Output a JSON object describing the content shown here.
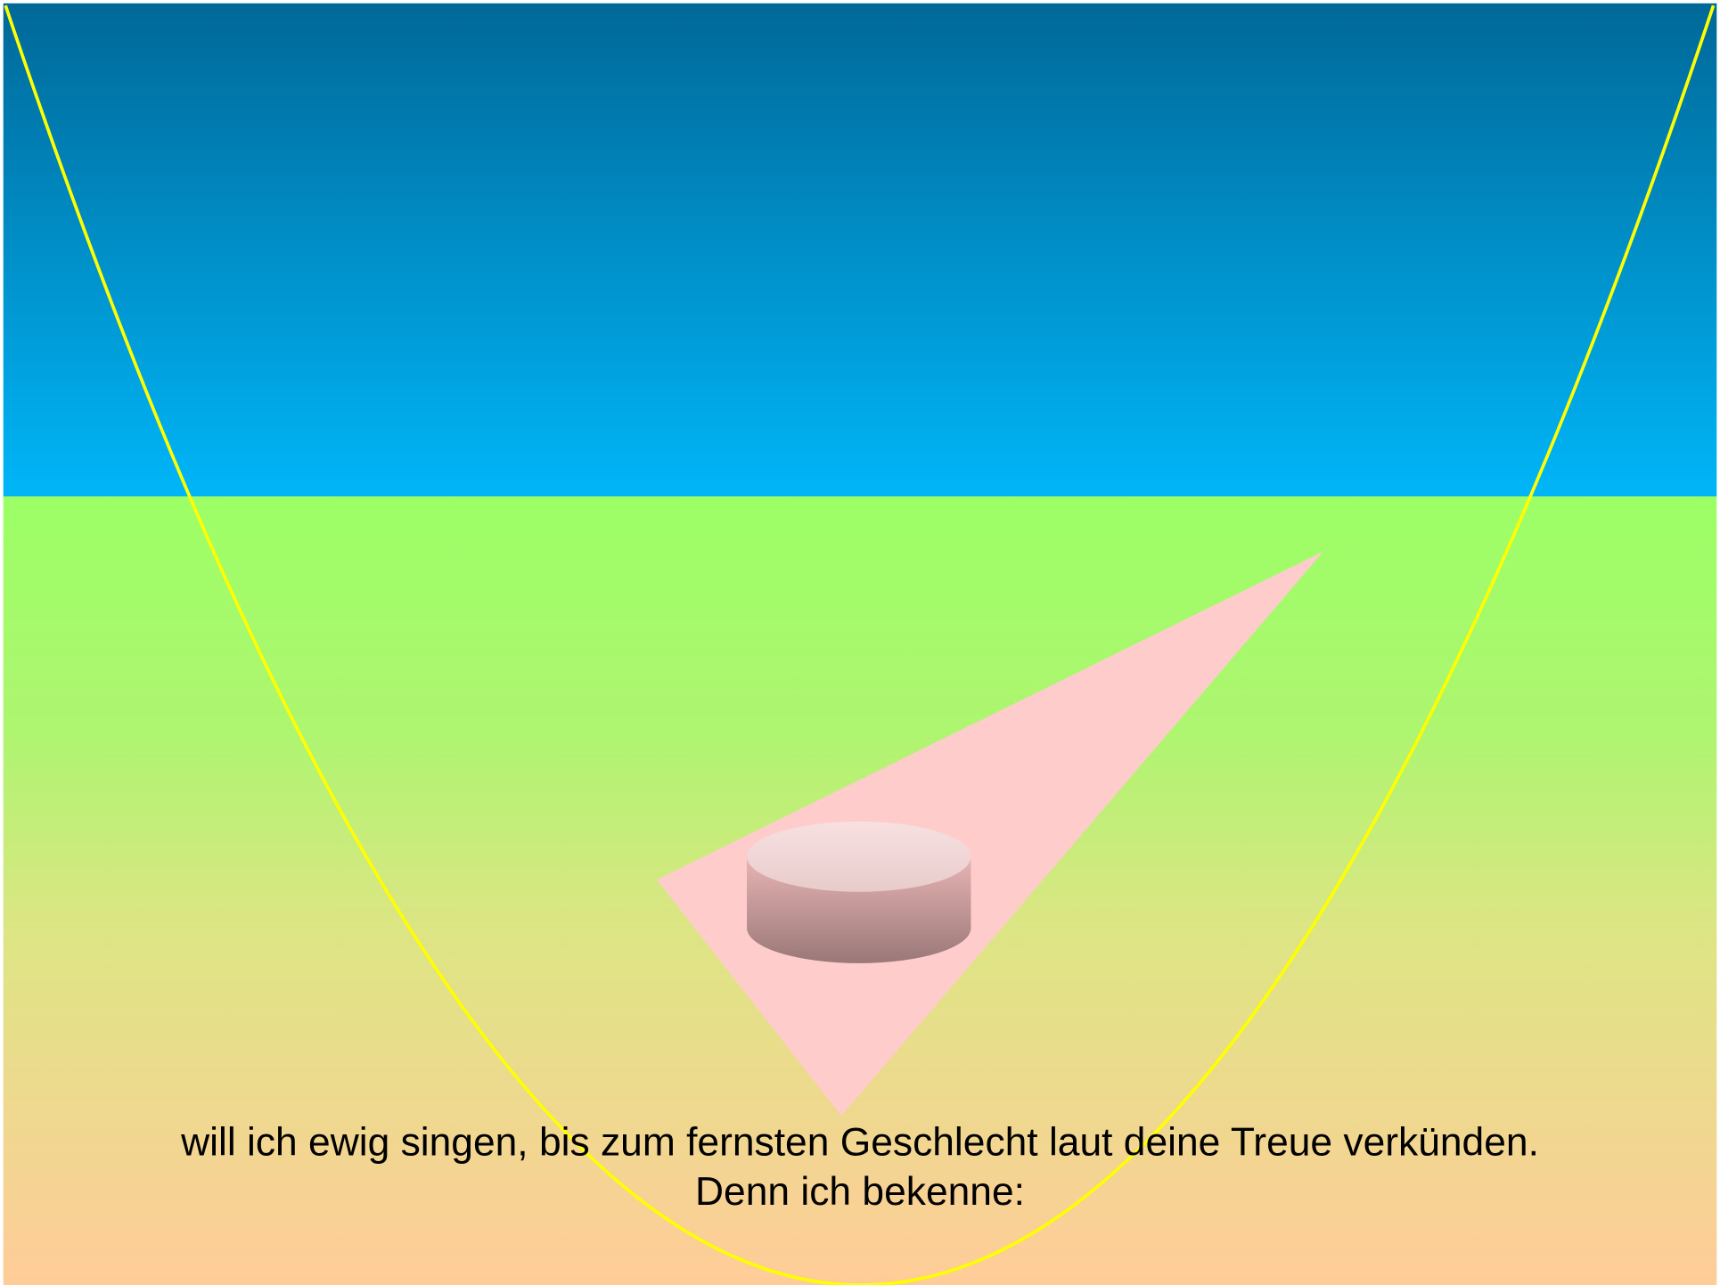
{
  "text": {
    "lines": [
      "will ich ewig singen, bis zum fernsten Geschlecht laut deine Treue verkünden.",
      "Denn ich bekenne:"
    ]
  }
}
